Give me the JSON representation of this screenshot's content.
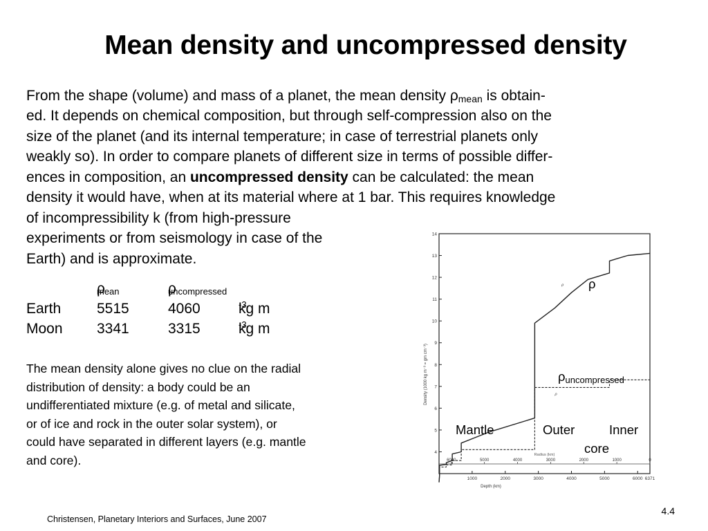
{
  "title": "Mean density and uncompressed density",
  "paragraph": {
    "l1a": "From the shape (volume) and mass of a planet, the mean density ρ",
    "l1sub": "mean",
    "l1b": " is obtain-",
    "l2": "ed. It depends on chemical composition, but through self-compression also on the",
    "l3": "size of the planet (and its internal temperature;  in case of terrestrial planets only",
    "l4": "weakly so). In order to compare planets of different size in terms of possible differ-",
    "l5a": "ences in composition, an ",
    "l5bold": "uncompressed density",
    "l5b": " can be calculated:  the mean",
    "l6": "density it would have, when at its material where at 1 bar. This requires knowledge",
    "l7": "of incompressibility k (from high-pressure",
    "l8": "experiments or from seismology in case of the",
    "l9": "Earth) and is approximate."
  },
  "table": {
    "rho": "ρ",
    "h1sub": "mean",
    "h2sub": "uncompressed",
    "rows": [
      {
        "name": "Earth",
        "mean": "5515",
        "uncompressed": "4060",
        "unit": "kg m",
        "exp": "-3"
      },
      {
        "name": "Moon",
        "mean": "3341",
        "uncompressed": "3315",
        "unit": "kg m",
        "exp": "-3"
      }
    ]
  },
  "paragraph2": [
    "The mean density alone gives no clue on the radial",
    "distribution of density: a body could be an",
    "undifferentiated mixture (e.g. of metal and silicate,",
    "or of ice and rock in the outer solar system), or",
    "could have separated in different layers (e.g. mantle",
    "and core)."
  ],
  "chart_data": {
    "type": "line",
    "xlabel": "Depth (km)",
    "ylabel": "Density (1000 kg m⁻³ = gm cm⁻³)",
    "secondary_xlabel": "Radius (km)",
    "xlim": [
      0,
      6371
    ],
    "ylim": [
      3,
      14
    ],
    "x_ticks": [
      "1000",
      "2000",
      "3000",
      "4000",
      "5000",
      "6000",
      "6371"
    ],
    "radius_ticks": [
      "6000",
      "5000",
      "4000",
      "3000",
      "2000",
      "1000",
      "0"
    ],
    "y_ticks": [
      "4",
      "5",
      "6",
      "7",
      "8",
      "9",
      "10",
      "11",
      "12",
      "13",
      "14"
    ],
    "series": [
      {
        "name": "ρ",
        "x": [
          0,
          15,
          15,
          100,
          220,
          220,
          400,
          400,
          670,
          670,
          1500,
          2891,
          2891,
          3500,
          4000,
          4500,
          5150,
          5150,
          5700,
          6371
        ],
        "y": [
          2.6,
          2.9,
          3.38,
          3.4,
          3.42,
          3.5,
          3.6,
          3.9,
          4.0,
          4.4,
          4.9,
          5.55,
          9.9,
          10.6,
          11.3,
          11.9,
          12.2,
          12.75,
          13.0,
          13.1
        ]
      },
      {
        "name": "ρuncompressed",
        "x": [
          0,
          15,
          15,
          220,
          220,
          400,
          400,
          670,
          670,
          1500,
          2891,
          2891,
          5150,
          5150,
          6371
        ],
        "y": [
          2.6,
          2.9,
          3.3,
          3.3,
          3.4,
          3.4,
          3.6,
          3.6,
          4.1,
          4.1,
          4.1,
          6.95,
          6.95,
          7.3,
          7.3
        ]
      }
    ],
    "labels": {
      "rho": "ρ",
      "rho_unc": "ρ",
      "rho_unc_sub": "uncompressed",
      "mantle": "Mantle",
      "outer": "Outer",
      "inner": "Inner",
      "core": "core"
    }
  },
  "footer": "Christensen, Planetary Interiors and Surfaces, June 2007",
  "page_number": "4.4"
}
